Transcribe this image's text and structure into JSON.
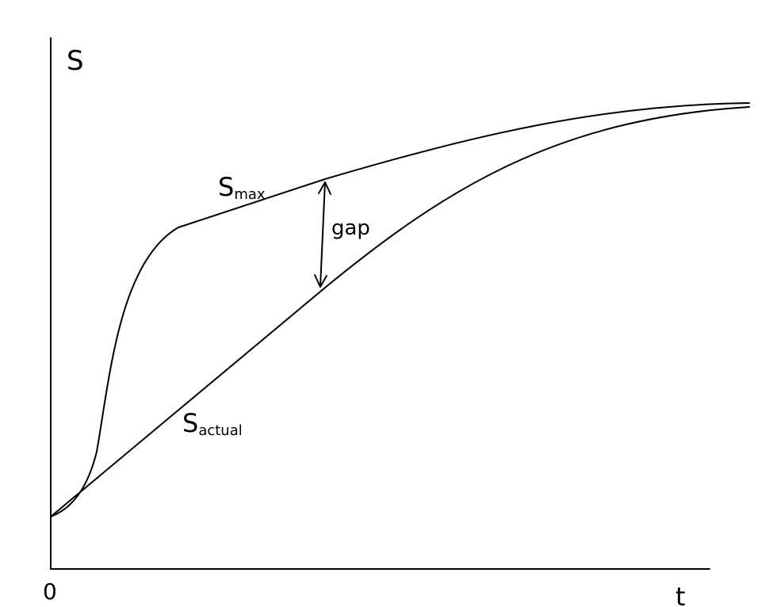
{
  "axes": {
    "y_label": "S",
    "x_label": "t",
    "origin": "0"
  },
  "curves": [
    {
      "label": "S",
      "subscript": "max"
    },
    {
      "label": "S",
      "subscript": "actual"
    }
  ],
  "annotation": "gap"
}
